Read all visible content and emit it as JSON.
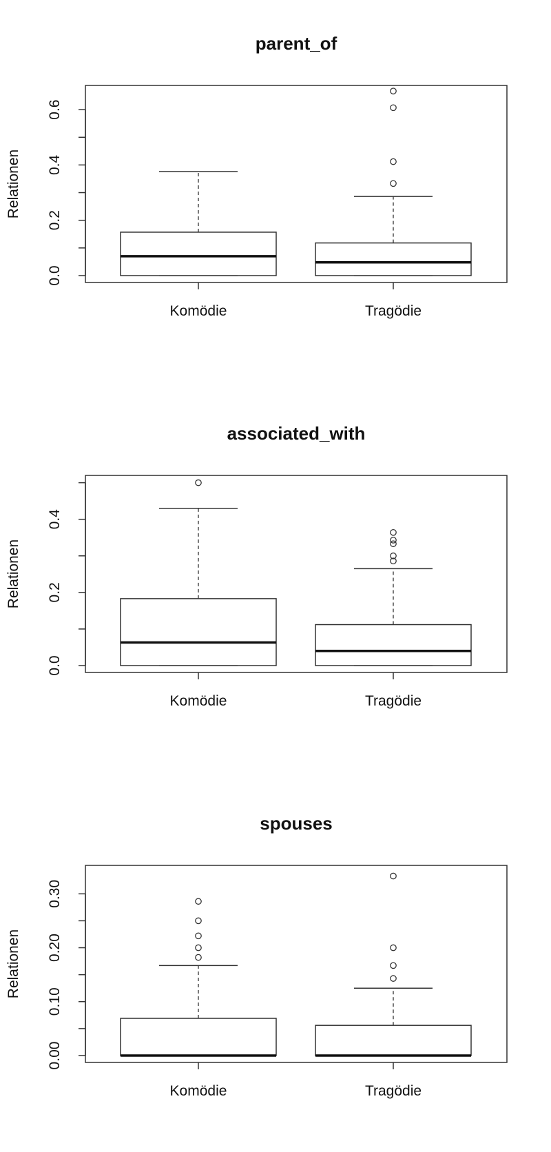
{
  "chart_data": [
    {
      "type": "boxplot",
      "title": "parent_of",
      "ylabel": "Relationen",
      "categories": [
        "Komödie",
        "Tragödie"
      ],
      "ylim": [
        0,
        0.68
      ],
      "yticks": [
        0.0,
        0.2,
        0.4,
        0.6
      ],
      "ytick_labels": [
        "0.0",
        "0.2",
        "0.4",
        "0.6"
      ],
      "minor_ticks": [
        0.1,
        0.3,
        0.5
      ],
      "boxes": [
        {
          "category": "Komödie",
          "whisker_low": 0.0,
          "q1": 0.0,
          "median": 0.07,
          "q3": 0.157,
          "whisker_high": 0.376,
          "outliers": []
        },
        {
          "category": "Tragödie",
          "whisker_low": 0.0,
          "q1": 0.0,
          "median": 0.048,
          "q3": 0.118,
          "whisker_high": 0.286,
          "outliers": [
            0.333,
            0.412,
            0.607,
            0.667
          ]
        }
      ]
    },
    {
      "type": "boxplot",
      "title": "associated_with",
      "ylabel": "Relationen",
      "categories": [
        "Komödie",
        "Tragödie"
      ],
      "ylim": [
        0,
        0.52
      ],
      "yticks": [
        0.0,
        0.2,
        0.4
      ],
      "ytick_labels": [
        "0.0",
        "0.2",
        "0.4"
      ],
      "minor_ticks": [
        0.1,
        0.3,
        0.5
      ],
      "boxes": [
        {
          "category": "Komödie",
          "whisker_low": 0.0,
          "q1": 0.0,
          "median": 0.063,
          "q3": 0.183,
          "whisker_high": 0.43,
          "outliers": [
            0.5
          ]
        },
        {
          "category": "Tragödie",
          "whisker_low": 0.0,
          "q1": 0.0,
          "median": 0.04,
          "q3": 0.112,
          "whisker_high": 0.265,
          "outliers": [
            0.286,
            0.3,
            0.333,
            0.343,
            0.364
          ]
        }
      ]
    },
    {
      "type": "boxplot",
      "title": "spouses",
      "ylabel": "Relationen",
      "categories": [
        "Komödie",
        "Tragödie"
      ],
      "ylim": [
        0,
        0.34
      ],
      "yticks": [
        0.0,
        0.1,
        0.2,
        0.3
      ],
      "ytick_labels": [
        "0.00",
        "0.10",
        "0.20",
        "0.30"
      ],
      "minor_ticks": [
        0.05,
        0.15,
        0.25
      ],
      "boxes": [
        {
          "category": "Komödie",
          "whisker_low": 0.0,
          "q1": 0.0,
          "median": 0.0,
          "q3": 0.069,
          "whisker_high": 0.167,
          "outliers": [
            0.182,
            0.2,
            0.222,
            0.25,
            0.286
          ]
        },
        {
          "category": "Tragödie",
          "whisker_low": 0.0,
          "q1": 0.0,
          "median": 0.0,
          "q3": 0.056,
          "whisker_high": 0.125,
          "outliers": [
            0.143,
            0.167,
            0.2,
            0.333
          ]
        }
      ]
    }
  ]
}
